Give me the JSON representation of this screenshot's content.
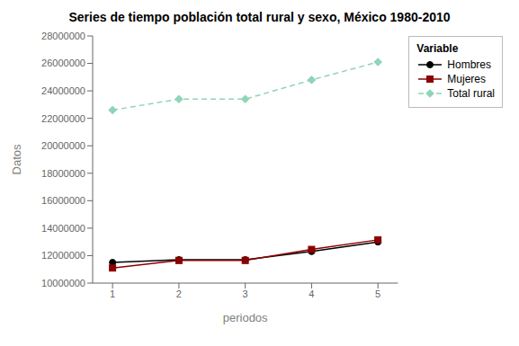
{
  "chart_data": {
    "type": "line",
    "title": "Series de tiempo población total rural y sexo, México 1980-2010",
    "xlabel": "periodos",
    "ylabel": "Datos",
    "x": [
      1,
      2,
      3,
      4,
      5
    ],
    "series": [
      {
        "name": "Hombres",
        "color": "#000000",
        "marker": "circle",
        "line_style": "solid",
        "values": [
          11500000,
          11700000,
          11700000,
          12300000,
          13000000
        ]
      },
      {
        "name": "Mujeres",
        "color": "#8b0000",
        "marker": "square",
        "line_style": "solid",
        "values": [
          11100000,
          11650000,
          11650000,
          12450000,
          13150000
        ]
      },
      {
        "name": "Total rural",
        "color": "#90d4b8",
        "marker": "diamond",
        "line_style": "dashed",
        "values": [
          22600000,
          23400000,
          23400000,
          24800000,
          26100000
        ]
      }
    ],
    "xlim": [
      0.7,
      5.3
    ],
    "xticks": [
      1,
      2,
      3,
      4,
      5
    ],
    "ylim": [
      10000000,
      28000000
    ],
    "yticks": [
      10000000,
      12000000,
      14000000,
      16000000,
      18000000,
      20000000,
      22000000,
      24000000,
      26000000,
      28000000
    ],
    "grid": false,
    "legend": "right",
    "legend_title": "Variable"
  }
}
